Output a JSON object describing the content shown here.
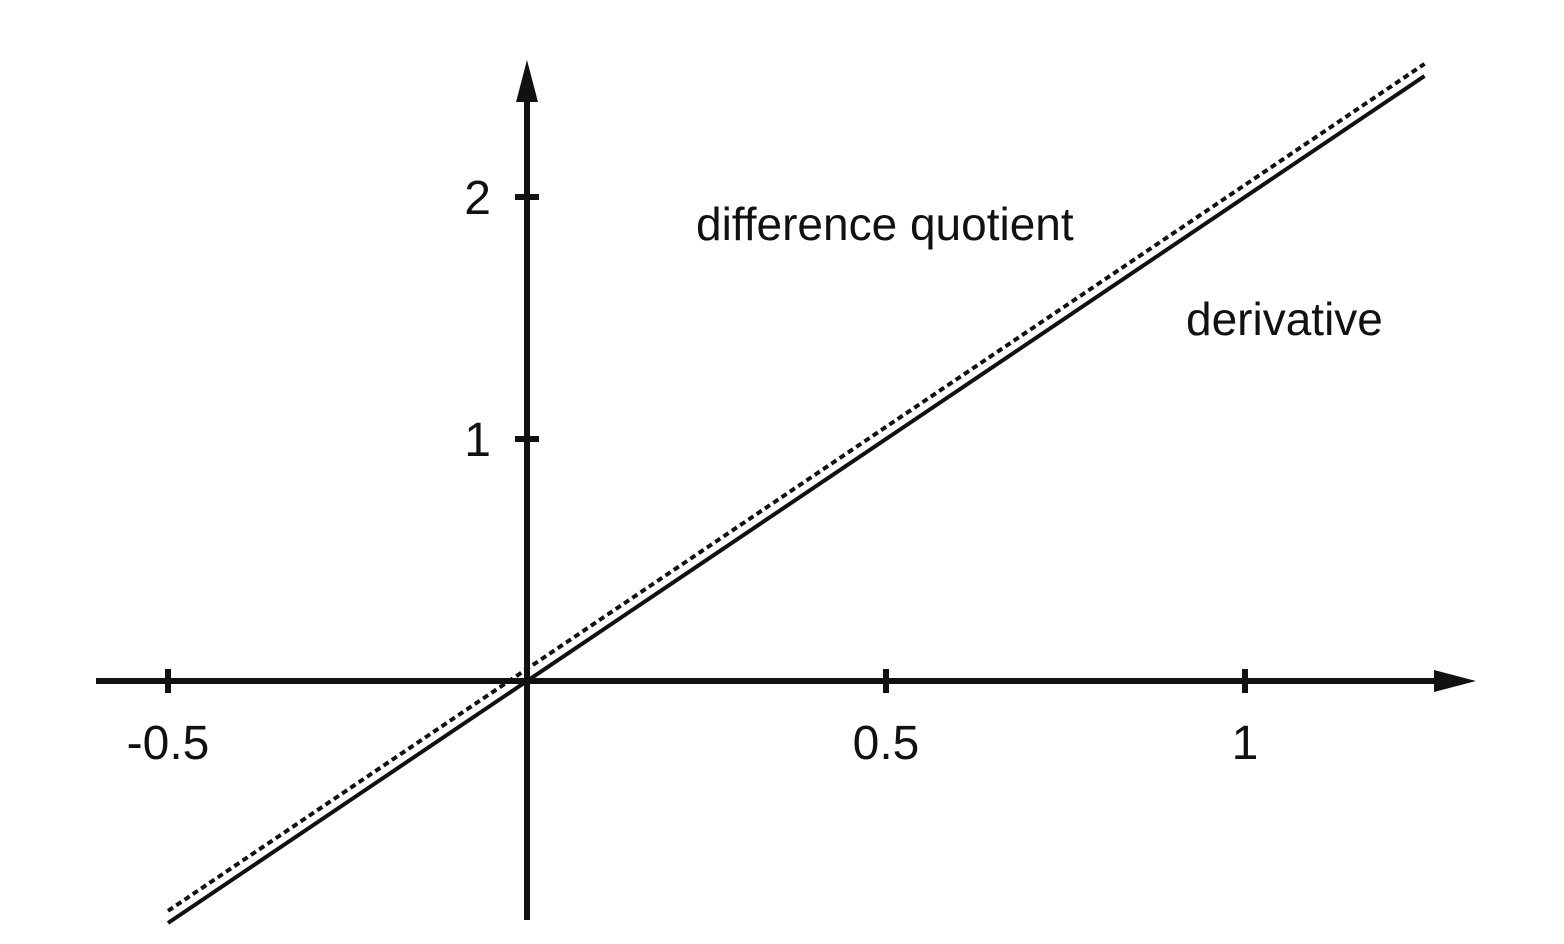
{
  "chart_data": {
    "type": "line",
    "title": "",
    "xlabel": "",
    "ylabel": "",
    "xlim": [
      -0.5,
      1.25
    ],
    "ylim": [
      -1,
      2.5
    ],
    "x_ticks": [
      {
        "value": -0.5,
        "label": "-0.5"
      },
      {
        "value": 0.5,
        "label": "0.5"
      },
      {
        "value": 1,
        "label": "1"
      }
    ],
    "y_ticks": [
      {
        "value": 1,
        "label": "1"
      },
      {
        "value": 2,
        "label": "2"
      }
    ],
    "series": [
      {
        "key": "derivative",
        "style": "solid",
        "color": "#111111",
        "x": [
          -0.5,
          1.25
        ],
        "y": [
          -1.0,
          2.5
        ]
      },
      {
        "key": "difference_quotient",
        "style": "dotted",
        "color": "#111111",
        "x": [
          -0.5,
          1.25
        ],
        "y": [
          -0.95,
          2.55
        ]
      }
    ],
    "annotations": [
      {
        "text": "difference quotient",
        "series": "difference_quotient"
      },
      {
        "text": "derivative",
        "series": "derivative"
      }
    ],
    "grid": false,
    "legend": "none"
  }
}
